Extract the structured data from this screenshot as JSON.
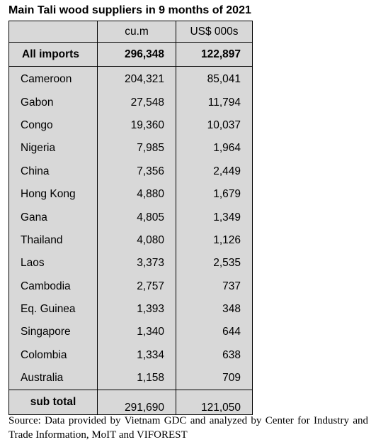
{
  "title": "Main Tali wood suppliers in 9 months of 2021",
  "columns": [
    "cu.m",
    "US$ 000s"
  ],
  "all_imports": {
    "label": "All imports",
    "cum": "296,348",
    "usd": "122,897"
  },
  "rows": [
    {
      "country": "Cameroon",
      "cum": "204,321",
      "usd": "85,041"
    },
    {
      "country": "Gabon",
      "cum": "27,548",
      "usd": "11,794"
    },
    {
      "country": "Congo",
      "cum": "19,360",
      "usd": "10,037"
    },
    {
      "country": "Nigeria",
      "cum": "7,985",
      "usd": "1,964"
    },
    {
      "country": "China",
      "cum": "7,356",
      "usd": "2,449"
    },
    {
      "country": "Hong Kong",
      "cum": "4,880",
      "usd": "1,679"
    },
    {
      "country": "Gana",
      "cum": "4,805",
      "usd": "1,349"
    },
    {
      "country": "Thailand",
      "cum": "4,080",
      "usd": "1,126"
    },
    {
      "country": "Laos",
      "cum": "3,373",
      "usd": "2,535"
    },
    {
      "country": "Cambodia",
      "cum": "2,757",
      "usd": "737"
    },
    {
      "country": "Eq. Guinea",
      "cum": "1,393",
      "usd": "348"
    },
    {
      "country": "Singapore",
      "cum": "1,340",
      "usd": "644"
    },
    {
      "country": "Colombia",
      "cum": "1,334",
      "usd": "638"
    },
    {
      "country": "Australia",
      "cum": "1,158",
      "usd": "709"
    }
  ],
  "sub_total": {
    "label": "sub total",
    "cum": "291,690",
    "usd": "121,050"
  },
  "source": "Source: Data provided by Vietnam GDC and analyzed by Center for Industry and Trade Information, MoIT and VIFOREST"
}
